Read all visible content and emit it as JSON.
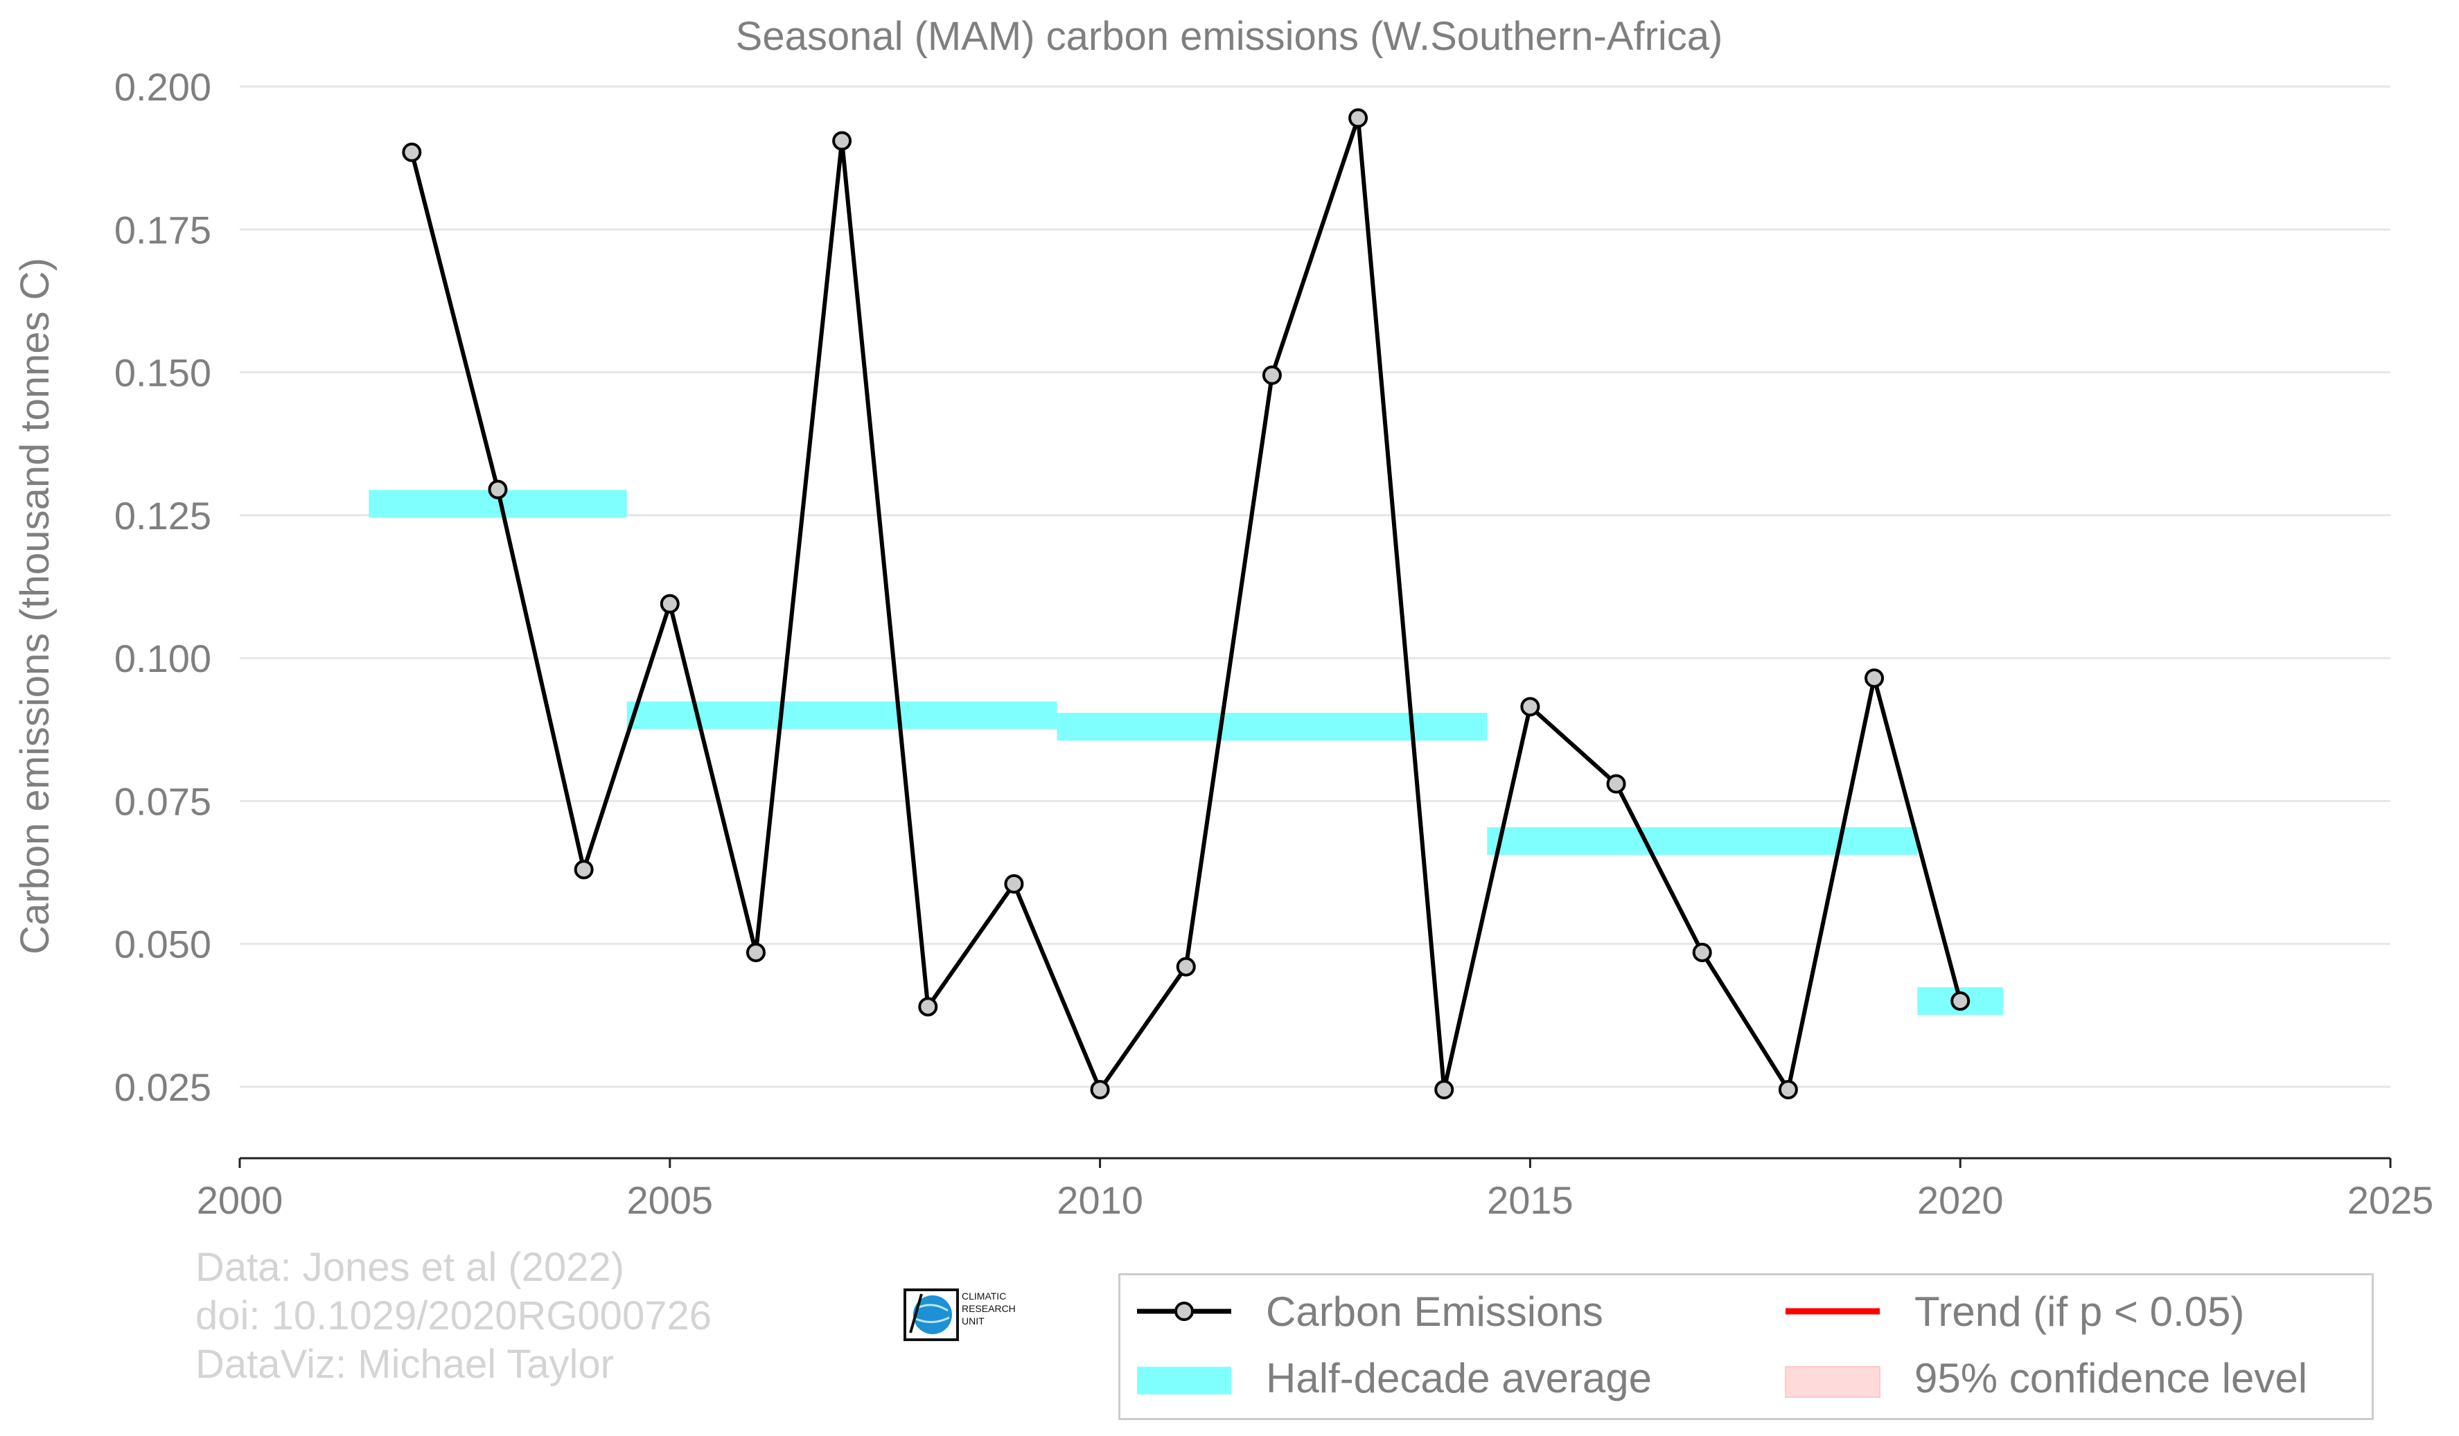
{
  "chart_data": {
    "type": "line",
    "title": "Seasonal (MAM) carbon emissions (W.Southern-Africa)",
    "xlabel": "",
    "ylabel": "Carbon emissions (thousand tonnes C)",
    "xlim": [
      2000,
      2025
    ],
    "ylim": [
      0.0125,
      0.2
    ],
    "x_ticks": [
      "2000",
      "2005",
      "2010",
      "2015",
      "2020",
      "2025"
    ],
    "y_ticks": [
      "0.025",
      "0.050",
      "0.075",
      "0.100",
      "0.125",
      "0.150",
      "0.175",
      "0.200"
    ],
    "grid": "horizontal",
    "series": [
      {
        "name": "Carbon Emissions",
        "color": "#000000",
        "marker_fill": "#cccccc",
        "x": [
          2002,
          2003,
          2004,
          2005,
          2006,
          2007,
          2008,
          2009,
          2010,
          2011,
          2012,
          2013,
          2014,
          2015,
          2016,
          2017,
          2018,
          2019,
          2020
        ],
        "y": [
          0.1885,
          0.1295,
          0.063,
          0.1095,
          0.0485,
          0.1905,
          0.039,
          0.0605,
          0.0245,
          0.046,
          0.1495,
          0.1945,
          0.0245,
          0.0915,
          0.078,
          0.0485,
          0.0245,
          0.0965,
          0.04
        ]
      }
    ],
    "half_decade_average": {
      "name": "Half-decade average",
      "color": "#80ffff",
      "segments": [
        {
          "x0": 2001.5,
          "x1": 2004.5,
          "y": 0.127
        },
        {
          "x0": 2004.5,
          "x1": 2009.5,
          "y": 0.09
        },
        {
          "x0": 2009.5,
          "x1": 2014.5,
          "y": 0.088
        },
        {
          "x0": 2014.5,
          "x1": 2019.5,
          "y": 0.068
        },
        {
          "x0": 2019.5,
          "x1": 2020.5,
          "y": 0.04
        }
      ]
    },
    "legend": {
      "placement": "bottom-right",
      "items": [
        {
          "label": "Carbon Emissions",
          "symbol": "line-marker",
          "color": "#000000"
        },
        {
          "label": "Half-decade average",
          "symbol": "band",
          "color": "#80ffff"
        },
        {
          "label": "Trend (if p < 0.05)",
          "symbol": "line",
          "color": "#ff0000"
        },
        {
          "label": "95% confidence level",
          "symbol": "patch",
          "color": "#ffdada"
        }
      ]
    }
  },
  "credits": {
    "line1": "Data: Jones et al (2022)",
    "line2": "doi: 10.1029/2020RG000726",
    "line3": "DataViz: Michael Taylor"
  },
  "logo": {
    "line1": "CLIMATIC",
    "line2": "RESEARCH",
    "line3": "UNIT"
  }
}
